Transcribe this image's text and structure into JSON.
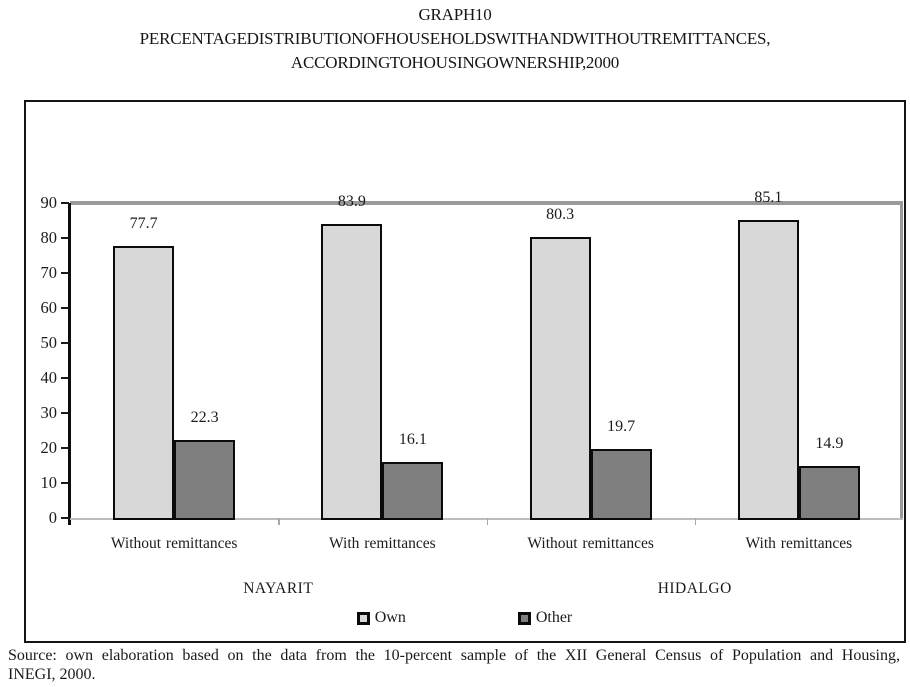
{
  "chart_data": {
    "type": "bar",
    "title": "GRAPH 10",
    "subtitle_lines": [
      "PERCENTAGE DISTRIBUTION OF HOUSEHOLDS WITH AND WITHOUT REMITTANCES,",
      "ACCORDING TO HOUSING OWNERSHIP, 2000"
    ],
    "categories": [
      "Without remittances",
      "With remittances",
      "Without remittances",
      "With remittances"
    ],
    "group_labels": [
      {
        "label": "NAYARIT",
        "categories": [
          0,
          1
        ]
      },
      {
        "label": "HIDALGO",
        "categories": [
          2,
          3
        ]
      }
    ],
    "series": [
      {
        "name": "Own",
        "color": "#d8d8d8",
        "values": [
          77.7,
          83.9,
          80.3,
          85.1
        ]
      },
      {
        "name": "Other",
        "color": "#7f7f7f",
        "values": [
          22.3,
          16.1,
          19.7,
          14.9
        ]
      }
    ],
    "ylim": [
      0,
      90
    ],
    "ytick_step": 10,
    "grid": "single-line-at-90",
    "legend_position": "bottom"
  },
  "colors": {
    "bar_border": "#0b0b0b",
    "gridline_90": "#9a9a9a",
    "axis": "#0c0c0c",
    "baseline": "#bdbdbd",
    "text": "#1c1c1c"
  },
  "source": {
    "line1": "Source: own elaboration based on the data from the 10-percent sample of the XII General Census of Population and Housing,",
    "line2": "INEGI, 2000."
  }
}
